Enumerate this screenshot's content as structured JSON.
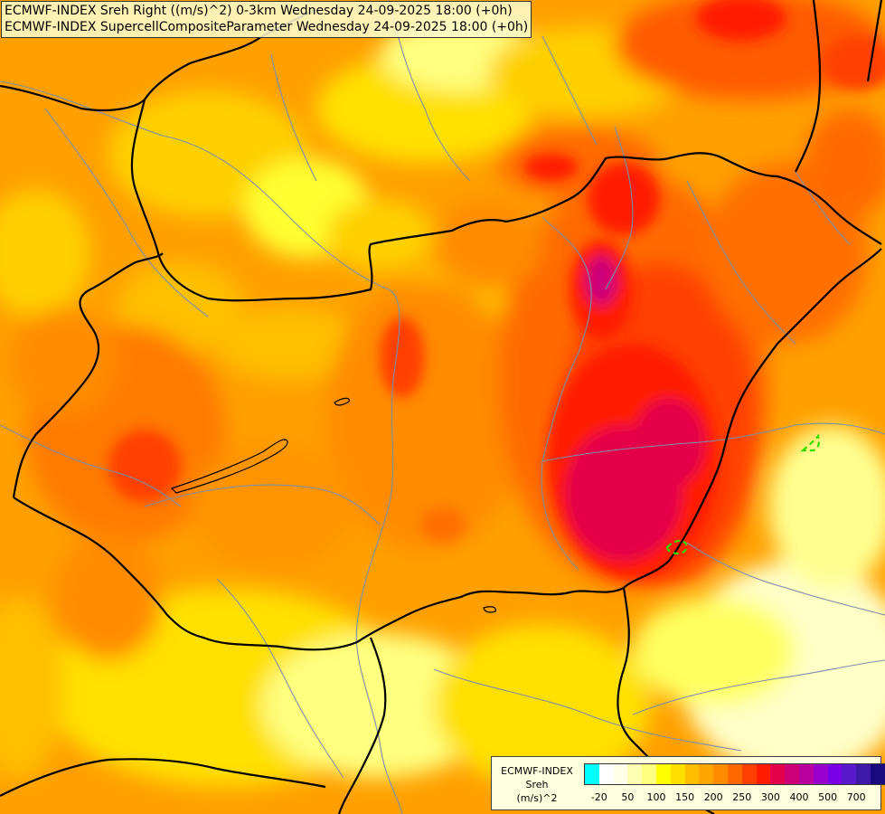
{
  "header": {
    "line1": "ECMWF-INDEX Sreh Right ((m/s)^2) 0-3km Wednesday 24-09-2025 18:00 (+0h)",
    "line2": "ECMWF-INDEX SupercellCompositeParameter Wednesday 24-09-2025 18:00 (+0h)"
  },
  "legend": {
    "title1": "ECMWF-INDEX",
    "title2": "Sreh",
    "title3": "(m/s)^2",
    "colors": [
      "#00ffff",
      "#ffffff",
      "#ffffe8",
      "#ffffb4",
      "#ffff80",
      "#ffff00",
      "#ffdf00",
      "#ffbf00",
      "#ffa500",
      "#ff8c00",
      "#ff6a00",
      "#ff4000",
      "#ff1c00",
      "#e4004a",
      "#cc0077",
      "#b8009e",
      "#9900cc",
      "#7a00e6",
      "#5a1acb",
      "#3d1aa8",
      "#1a0a80"
    ],
    "ticks": [
      "-20",
      "50",
      "100",
      "150",
      "200",
      "250",
      "300",
      "400",
      "500",
      "700"
    ]
  },
  "colors": {
    "border": "#000000",
    "river": "#7a8fa8",
    "scp_contour": "#33dd00"
  }
}
